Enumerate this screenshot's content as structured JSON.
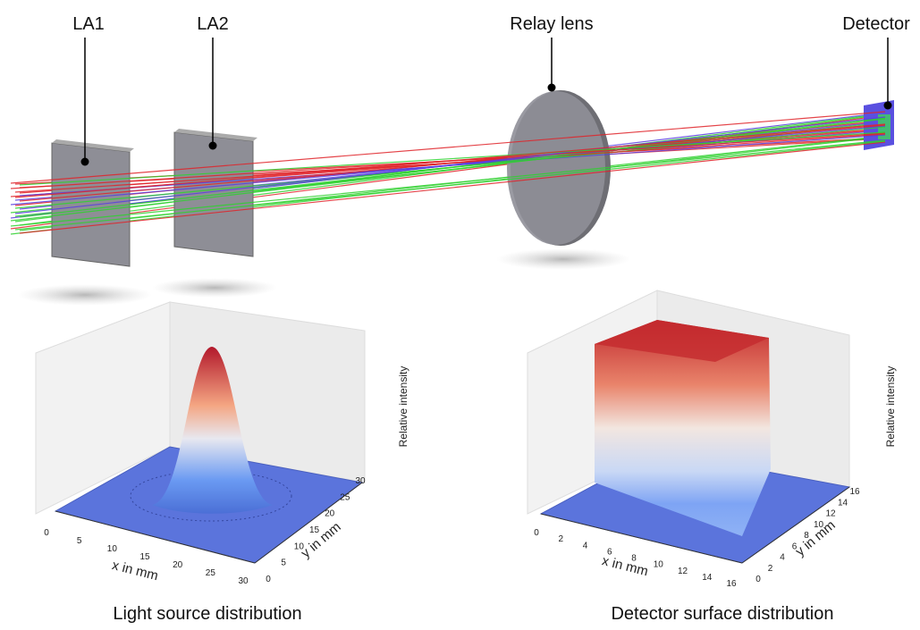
{
  "optical_setup": {
    "labels": [
      "LA1",
      "LA2",
      "Relay lens",
      "Detector"
    ]
  },
  "plots": [
    {
      "caption": "Light source distribution",
      "x_label": "x in mm",
      "y_label": "y in mm",
      "z_label": "Relative intensity",
      "x_ticks": [
        0,
        5,
        10,
        15,
        20,
        25,
        30
      ],
      "y_ticks": [
        0,
        5,
        10,
        15,
        20,
        25,
        30
      ]
    },
    {
      "caption": "Detector surface distribution",
      "x_label": "x in mm",
      "y_label": "y in mm",
      "z_label": "Relative intensity",
      "x_ticks": [
        0,
        2,
        4,
        6,
        8,
        10,
        12,
        14,
        16
      ],
      "y_ticks": [
        0,
        2,
        4,
        6,
        8,
        10,
        12,
        14,
        16
      ]
    }
  ]
}
